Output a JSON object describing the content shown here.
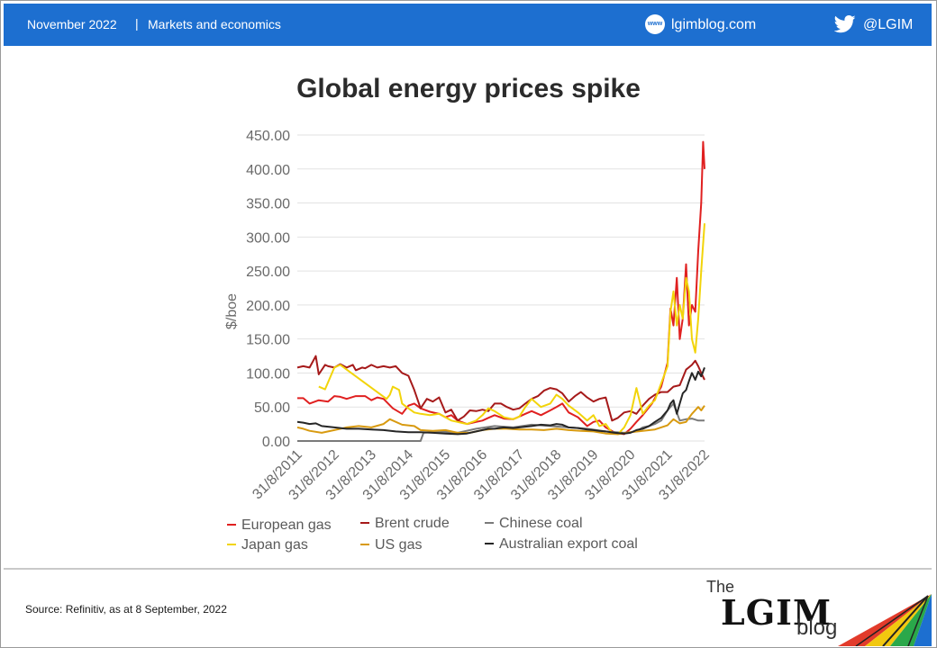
{
  "header": {
    "date": "November 2022",
    "separator": "|",
    "section": "Markets and economics",
    "website_icon_text": "www",
    "website": "lgimblog.com",
    "twitter_handle": "@LGIM",
    "bar_color": "#1d6fd0"
  },
  "chart_data": {
    "type": "line",
    "title": "Global energy prices spike",
    "xlabel": "",
    "ylabel": "$/boe",
    "ylim": [
      0,
      450
    ],
    "yticks": [
      "0.00",
      "50.00",
      "100.00",
      "150.00",
      "200.00",
      "250.00",
      "300.00",
      "350.00",
      "400.00",
      "450.00"
    ],
    "xlim": [
      2011.67,
      2022.67
    ],
    "xticks": [
      "31/8/2011",
      "31/8/2012",
      "31/8/2013",
      "31/8/2014",
      "31/8/2015",
      "31/8/2016",
      "31/8/2017",
      "31/8/2018",
      "31/8/2019",
      "31/8/2020",
      "31/8/2021",
      "31/8/2022"
    ],
    "grid": "horizontal",
    "legend_position": "bottom",
    "series": [
      {
        "name": "European gas",
        "color": "#e02020",
        "x": [
          2011.67,
          2011.83,
          2012.0,
          2012.25,
          2012.5,
          2012.67,
          2012.83,
          2013.0,
          2013.25,
          2013.5,
          2013.67,
          2013.83,
          2014.0,
          2014.25,
          2014.5,
          2014.67,
          2014.83,
          2015.0,
          2015.25,
          2015.5,
          2015.67,
          2015.83,
          2016.0,
          2016.25,
          2016.5,
          2016.67,
          2016.83,
          2017.0,
          2017.25,
          2017.5,
          2017.67,
          2017.83,
          2018.0,
          2018.25,
          2018.5,
          2018.67,
          2018.83,
          2019.0,
          2019.25,
          2019.5,
          2019.67,
          2019.83,
          2020.0,
          2020.25,
          2020.5,
          2020.67,
          2020.83,
          2021.0,
          2021.25,
          2021.5,
          2021.67,
          2021.75,
          2021.83,
          2021.92,
          2022.0,
          2022.08,
          2022.17,
          2022.25,
          2022.33,
          2022.42,
          2022.5,
          2022.58,
          2022.63,
          2022.67
        ],
        "y": [
          63,
          63,
          55,
          60,
          58,
          66,
          65,
          62,
          66,
          66,
          60,
          64,
          62,
          48,
          40,
          52,
          55,
          48,
          43,
          40,
          35,
          38,
          30,
          25,
          28,
          30,
          34,
          38,
          33,
          32,
          36,
          40,
          44,
          38,
          45,
          50,
          55,
          42,
          35,
          22,
          28,
          30,
          20,
          12,
          10,
          18,
          28,
          38,
          55,
          80,
          115,
          195,
          170,
          240,
          150,
          180,
          260,
          170,
          200,
          190,
          280,
          350,
          440,
          400
        ]
      },
      {
        "name": "Brent crude",
        "color": "#a61a1a",
        "x": [
          2011.67,
          2011.83,
          2012.0,
          2012.17,
          2012.25,
          2012.42,
          2012.5,
          2012.67,
          2012.83,
          2013.0,
          2013.17,
          2013.25,
          2013.42,
          2013.5,
          2013.67,
          2013.83,
          2014.0,
          2014.17,
          2014.33,
          2014.5,
          2014.67,
          2014.83,
          2015.0,
          2015.17,
          2015.33,
          2015.5,
          2015.67,
          2015.83,
          2016.0,
          2016.17,
          2016.33,
          2016.5,
          2016.67,
          2016.83,
          2017.0,
          2017.17,
          2017.33,
          2017.5,
          2017.67,
          2017.83,
          2018.0,
          2018.17,
          2018.33,
          2018.5,
          2018.67,
          2018.83,
          2019.0,
          2019.17,
          2019.33,
          2019.5,
          2019.67,
          2019.83,
          2020.0,
          2020.17,
          2020.33,
          2020.5,
          2020.67,
          2020.83,
          2021.0,
          2021.17,
          2021.33,
          2021.5,
          2021.67,
          2021.83,
          2022.0,
          2022.17,
          2022.33,
          2022.42,
          2022.5,
          2022.58,
          2022.67
        ],
        "y": [
          108,
          110,
          108,
          125,
          98,
          112,
          110,
          108,
          113,
          108,
          112,
          104,
          108,
          107,
          112,
          108,
          110,
          108,
          110,
          100,
          96,
          75,
          48,
          62,
          58,
          64,
          42,
          46,
          30,
          36,
          45,
          44,
          46,
          44,
          55,
          55,
          50,
          46,
          48,
          55,
          62,
          66,
          74,
          78,
          76,
          70,
          58,
          66,
          72,
          64,
          58,
          62,
          64,
          30,
          34,
          42,
          44,
          40,
          52,
          62,
          68,
          72,
          72,
          80,
          82,
          105,
          112,
          118,
          110,
          100,
          90
        ]
      },
      {
        "name": "Chinese coal",
        "color": "#7a7a7a",
        "x": [
          2011.67,
          2012.5,
          2013.5,
          2014.5,
          2015.0,
          2015.08,
          2015.5,
          2016.0,
          2016.5,
          2017.0,
          2017.5,
          2018.0,
          2018.5,
          2019.0,
          2019.5,
          2020.0,
          2020.5,
          2020.83,
          2021.0,
          2021.17,
          2021.33,
          2021.5,
          2021.67,
          2021.83,
          2022.0,
          2022.17,
          2022.33,
          2022.5,
          2022.67
        ],
        "y": [
          0,
          0,
          0,
          0,
          0,
          12,
          14,
          12,
          18,
          22,
          20,
          24,
          22,
          20,
          18,
          14,
          12,
          14,
          20,
          22,
          25,
          30,
          45,
          55,
          30,
          32,
          33,
          30,
          30
        ]
      },
      {
        "name": "Japan gas",
        "color": "#f2d40a",
        "x": [
          2012.25,
          2012.42,
          2012.67,
          2012.83,
          2014.08,
          2014.17,
          2014.25,
          2014.42,
          2014.5,
          2014.67,
          2014.83,
          2015.0,
          2015.25,
          2015.5,
          2015.67,
          2015.83,
          2016.0,
          2016.25,
          2016.5,
          2016.67,
          2016.83,
          2017.0,
          2017.25,
          2017.5,
          2017.67,
          2017.83,
          2018.0,
          2018.25,
          2018.5,
          2018.67,
          2018.83,
          2019.0,
          2019.25,
          2019.5,
          2019.67,
          2019.83,
          2020.0,
          2020.17,
          2020.33,
          2020.5,
          2020.67,
          2020.83,
          2021.0,
          2021.17,
          2021.33,
          2021.5,
          2021.67,
          2021.75,
          2021.83,
          2021.92,
          2022.0,
          2022.08,
          2022.17,
          2022.25,
          2022.33,
          2022.42,
          2022.5,
          2022.58,
          2022.67
        ],
        "y": [
          80,
          76,
          108,
          112,
          62,
          68,
          80,
          75,
          55,
          48,
          42,
          40,
          38,
          40,
          35,
          30,
          28,
          25,
          30,
          38,
          48,
          44,
          35,
          32,
          36,
          50,
          62,
          50,
          55,
          68,
          62,
          52,
          42,
          30,
          38,
          22,
          25,
          12,
          10,
          20,
          38,
          78,
          40,
          52,
          60,
          85,
          110,
          190,
          220,
          170,
          200,
          180,
          240,
          220,
          150,
          130,
          180,
          250,
          320
        ]
      },
      {
        "name": "US gas",
        "color": "#d89a10",
        "x": [
          2011.67,
          2011.83,
          2012.0,
          2012.33,
          2012.67,
          2013.0,
          2013.33,
          2013.67,
          2014.0,
          2014.17,
          2014.5,
          2014.83,
          2015.0,
          2015.33,
          2015.67,
          2016.0,
          2016.33,
          2016.67,
          2017.0,
          2017.33,
          2017.67,
          2018.0,
          2018.33,
          2018.67,
          2019.0,
          2019.33,
          2019.67,
          2020.0,
          2020.33,
          2020.67,
          2021.0,
          2021.33,
          2021.67,
          2021.83,
          2022.0,
          2022.17,
          2022.33,
          2022.5,
          2022.58,
          2022.67
        ],
        "y": [
          20,
          18,
          15,
          12,
          16,
          20,
          22,
          20,
          25,
          32,
          24,
          22,
          16,
          15,
          16,
          12,
          12,
          16,
          18,
          18,
          17,
          17,
          16,
          18,
          16,
          15,
          14,
          11,
          10,
          13,
          15,
          17,
          23,
          32,
          26,
          28,
          40,
          50,
          45,
          52
        ]
      },
      {
        "name": "Australian export coal",
        "color": "#262626",
        "x": [
          2011.67,
          2011.83,
          2012.0,
          2012.17,
          2012.33,
          2012.5,
          2012.67,
          2012.83,
          2013.0,
          2013.33,
          2013.67,
          2014.0,
          2014.33,
          2014.67,
          2015.0,
          2015.33,
          2015.67,
          2016.0,
          2016.25,
          2016.5,
          2016.67,
          2016.83,
          2017.0,
          2017.25,
          2017.5,
          2017.67,
          2017.83,
          2018.0,
          2018.25,
          2018.5,
          2018.67,
          2018.83,
          2019.0,
          2019.25,
          2019.5,
          2019.67,
          2019.83,
          2020.0,
          2020.25,
          2020.5,
          2020.67,
          2020.83,
          2021.0,
          2021.17,
          2021.33,
          2021.5,
          2021.67,
          2021.75,
          2021.83,
          2021.92,
          2022.0,
          2022.08,
          2022.17,
          2022.25,
          2022.33,
          2022.42,
          2022.5,
          2022.58,
          2022.67
        ],
        "y": [
          28,
          27,
          25,
          26,
          22,
          21,
          20,
          19,
          18,
          18,
          17,
          16,
          14,
          13,
          13,
          12,
          11,
          10,
          11,
          14,
          16,
          18,
          18,
          20,
          19,
          20,
          21,
          22,
          24,
          23,
          25,
          24,
          20,
          19,
          17,
          16,
          15,
          14,
          12,
          11,
          12,
          16,
          18,
          22,
          28,
          34,
          45,
          55,
          60,
          40,
          55,
          70,
          75,
          88,
          100,
          90,
          102,
          95,
          108
        ]
      }
    ]
  },
  "source": "Source: Refinitiv, as at 8 September, 2022",
  "logo": {
    "the": "The",
    "lgim": "LGIM",
    "blog": "blog"
  }
}
